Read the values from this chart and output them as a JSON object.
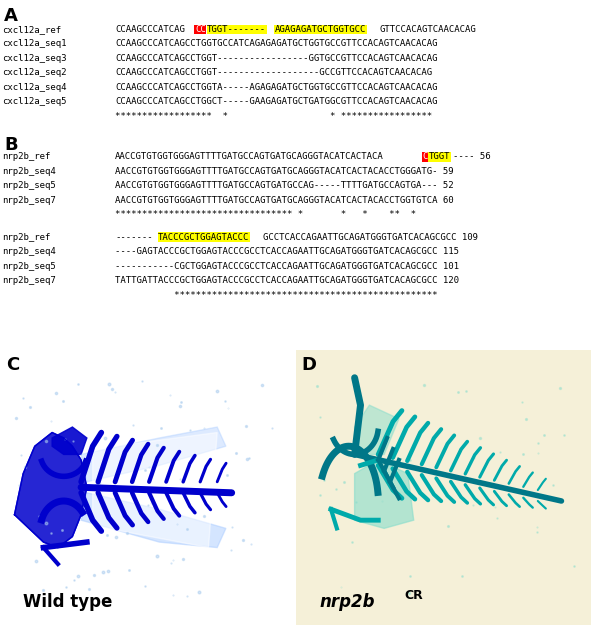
{
  "panel_labels": [
    "A",
    "B",
    "C",
    "D"
  ],
  "label_fontsize": 13,
  "seq_fontsize": 6.5,
  "name_fontsize": 6.5,
  "cxcl_rows": [
    {
      "name": "cxcl12a_ref",
      "parts": [
        [
          "CCAAGCCCATCAG",
          null,
          "black"
        ],
        [
          "CC",
          "red",
          "white"
        ],
        [
          "TGGT-------",
          "yellow",
          "black"
        ],
        [
          "AGAGAGATGCTGGTGCC",
          "yellow",
          "black"
        ],
        [
          "GTTCCACAGTCAACACAG",
          null,
          "black"
        ]
      ]
    },
    {
      "name": "cxcl12a_seq1",
      "parts": [
        [
          "CCAAGCCCATCAGCCTGGTGCCATCAGAGAGATGCTGGTGCCGTTCCACAGTCAACACAG",
          null,
          "black"
        ]
      ]
    },
    {
      "name": "cxcl12a_seq3",
      "parts": [
        [
          "CCAAGCCCATCAGCCTGGT-----------------GGTGCCGTTCCACAGTCAACACAG",
          null,
          "black"
        ]
      ]
    },
    {
      "name": "cxcl12a_seq2",
      "parts": [
        [
          "CCAAGCCCATCAGCCTGGT-------------------GCCGTTCCACAGTCAACACAG",
          null,
          "black"
        ]
      ]
    },
    {
      "name": "cxcl12a_seq4",
      "parts": [
        [
          "CCAAGCCCATCAGCCTGGTA-----AGAGAGATGCTGGTGCCGTTCCACAGTCAACACAG",
          null,
          "black"
        ]
      ]
    },
    {
      "name": "cxcl12a_seq5",
      "parts": [
        [
          "CCAAGCCCATCAGCCTGGCT-----GAAGAGATGCTGATGGCGTTCCACAGTCAACACAG",
          null,
          "black"
        ]
      ]
    },
    {
      "name": "",
      "parts": [
        [
          "******************  *                   * *****************",
          null,
          "black"
        ]
      ]
    }
  ],
  "nrp_rows1": [
    {
      "name": "nrp2b_ref",
      "parts": [
        [
          "AACCGTGTGGTGGGAGTTTTGATGCCAGTGATGCAGGGTACATCACTACA",
          null,
          "black"
        ],
        [
          "C",
          "red",
          "white"
        ],
        [
          "TGGT",
          "yellow",
          "black"
        ],
        [
          "---- 56",
          null,
          "black"
        ]
      ]
    },
    {
      "name": "nrp2b_seq4",
      "parts": [
        [
          "AACCGTGTGGTGGGAGTTTTGATGCCAGTGATGCAGGGTACATCACTACACCTGGGATG- 59",
          null,
          "black"
        ]
      ]
    },
    {
      "name": "nrp2b_seq5",
      "parts": [
        [
          "AACCGTGTGGTGGGAGTTTTGATGCCAGTGATGCCAG-----TTTTGATGCCAGTGA--- 52",
          null,
          "black"
        ]
      ]
    },
    {
      "name": "nrp2b_seq7",
      "parts": [
        [
          "AACCGTGTGGTGGGAGTTTTGATGCCAGTGATGCAGGGTACATCACTACACCTGGTGTCA 60",
          null,
          "black"
        ]
      ]
    },
    {
      "name": "",
      "parts": [
        [
          "********************************* *       *   *    **  *",
          null,
          "black"
        ]
      ]
    }
  ],
  "nrp_rows2": [
    {
      "name": "nrp2b_ref",
      "parts": [
        [
          "-------",
          null,
          "black"
        ],
        [
          "TACCCGCTGGAGTACCC",
          "yellow",
          "black"
        ],
        [
          "GCCTCACCAGAATTGCAGATGGGTGATCACAGCGCC 109",
          null,
          "black"
        ]
      ]
    },
    {
      "name": "nrp2b_seq4",
      "parts": [
        [
          "----GAGTACCCGCTGGAGTACCCGCCTCACCAGAATTGCAGATGGGTGATCACAGCGCC 115",
          null,
          "black"
        ]
      ]
    },
    {
      "name": "nrp2b_seq5",
      "parts": [
        [
          "-----------CGCTGGAGTACCCGCCTCACCAGAATTGCAGATGGGTGATCACAGCGCC 101",
          null,
          "black"
        ]
      ]
    },
    {
      "name": "nrp2b_seq7",
      "parts": [
        [
          "TATTGATTACCCGCTGGAGTACCCGCCTCACCAGAATTGCAGATGGGTGATCACAGCGCC 120",
          null,
          "black"
        ]
      ]
    },
    {
      "name": "",
      "parts": [
        [
          "           *************************************************",
          null,
          "black"
        ]
      ]
    }
  ],
  "wildtype_label": "Wild type",
  "mutant_label_main": "nrp2b",
  "mutant_label_sup": "CR",
  "panel_C_bg": "#b8d4f0",
  "panel_D_bg": "#f5f0d8"
}
